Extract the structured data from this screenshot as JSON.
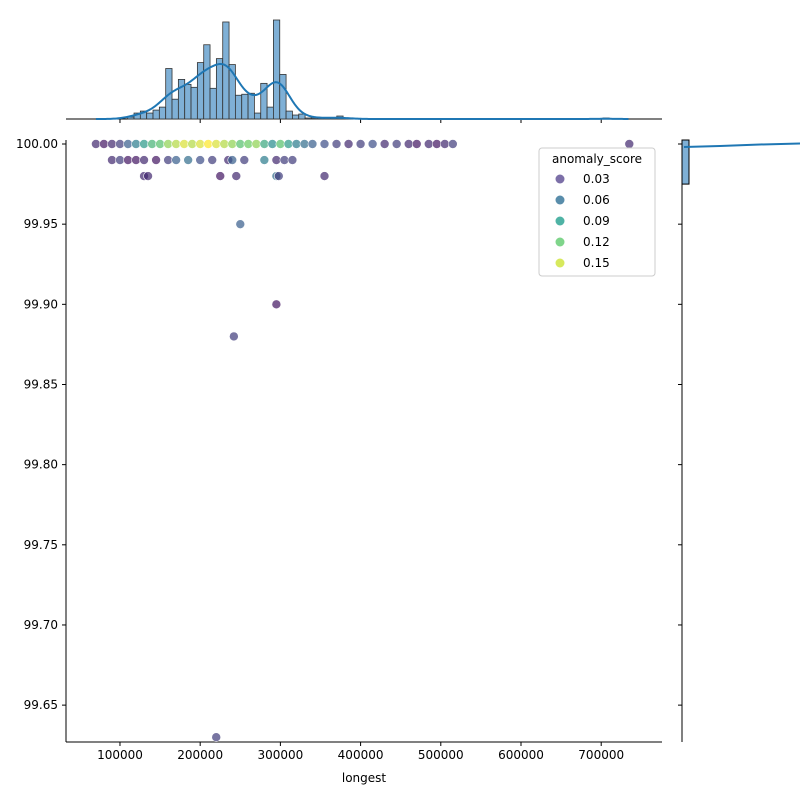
{
  "chart_data": {
    "type": "scatter",
    "xlabel": "longest",
    "ylabel": "",
    "xlim": [
      32700,
      775800
    ],
    "ylim": [
      99.627,
      100.0025
    ],
    "xticks": [
      100000,
      200000,
      300000,
      400000,
      500000,
      600000,
      700000
    ],
    "xtick_labels": [
      "100000",
      "200000",
      "300000",
      "400000",
      "500000",
      "600000",
      "700000"
    ],
    "yticks": [
      99.65,
      99.7,
      99.75,
      99.8,
      99.85,
      99.9,
      99.95,
      100.0
    ],
    "ytick_labels": [
      "99.65",
      "99.70",
      "99.75",
      "99.80",
      "99.85",
      "99.90",
      "99.95",
      "100.00"
    ],
    "hue": "anomaly_score",
    "legend": {
      "title": "anomaly_score",
      "placement": "upper-right",
      "entries": [
        {
          "label": "0.03",
          "color": "#5b4b92"
        },
        {
          "label": "0.06",
          "color": "#2f7096"
        },
        {
          "label": "0.09",
          "color": "#23a08e"
        },
        {
          "label": "0.12",
          "color": "#5fcb6e"
        },
        {
          "label": "0.15",
          "color": "#cde335"
        }
      ]
    },
    "points": [
      [
        70000,
        100,
        0.02
      ],
      [
        80000,
        100,
        0.01
      ],
      [
        90000,
        100,
        0.02
      ],
      [
        100000,
        100,
        0.03
      ],
      [
        110000,
        100,
        0.05
      ],
      [
        120000,
        100,
        0.07
      ],
      [
        130000,
        100,
        0.09
      ],
      [
        140000,
        100,
        0.11
      ],
      [
        150000,
        100,
        0.12
      ],
      [
        160000,
        100,
        0.14
      ],
      [
        170000,
        100,
        0.15
      ],
      [
        180000,
        100,
        0.16
      ],
      [
        190000,
        100,
        0.15
      ],
      [
        200000,
        100,
        0.16
      ],
      [
        210000,
        100,
        0.17
      ],
      [
        220000,
        100,
        0.16
      ],
      [
        230000,
        100,
        0.15
      ],
      [
        240000,
        100,
        0.14
      ],
      [
        250000,
        100,
        0.12
      ],
      [
        260000,
        100,
        0.13
      ],
      [
        270000,
        100,
        0.14
      ],
      [
        280000,
        100,
        0.1
      ],
      [
        290000,
        100,
        0.08
      ],
      [
        300000,
        100,
        0.12
      ],
      [
        310000,
        100,
        0.09
      ],
      [
        320000,
        100,
        0.07
      ],
      [
        330000,
        100,
        0.06
      ],
      [
        340000,
        100,
        0.05
      ],
      [
        355000,
        100,
        0.04
      ],
      [
        370000,
        100,
        0.03
      ],
      [
        385000,
        100,
        0.02
      ],
      [
        400000,
        100,
        0.03
      ],
      [
        415000,
        100,
        0.04
      ],
      [
        430000,
        100,
        0.02
      ],
      [
        445000,
        100,
        0.03
      ],
      [
        460000,
        100,
        0.02
      ],
      [
        470000,
        100,
        0.01
      ],
      [
        485000,
        100,
        0.02
      ],
      [
        495000,
        100,
        0.01
      ],
      [
        505000,
        100,
        0.02
      ],
      [
        515000,
        100,
        0.03
      ],
      [
        735000,
        100,
        0.02
      ],
      [
        90000,
        99.99,
        0.02
      ],
      [
        100000,
        99.99,
        0.03
      ],
      [
        110000,
        99.99,
        0.01
      ],
      [
        120000,
        99.99,
        0.01
      ],
      [
        130000,
        99.99,
        0.02
      ],
      [
        145000,
        99.99,
        0.01
      ],
      [
        160000,
        99.99,
        0.03
      ],
      [
        170000,
        99.99,
        0.05
      ],
      [
        185000,
        99.99,
        0.06
      ],
      [
        200000,
        99.99,
        0.04
      ],
      [
        215000,
        99.99,
        0.03
      ],
      [
        235000,
        99.99,
        0.02
      ],
      [
        240000,
        99.99,
        0.05
      ],
      [
        255000,
        99.99,
        0.03
      ],
      [
        280000,
        99.99,
        0.07
      ],
      [
        295000,
        99.99,
        0.02
      ],
      [
        305000,
        99.99,
        0.03
      ],
      [
        315000,
        99.99,
        0.03
      ],
      [
        130000,
        99.98,
        0.02
      ],
      [
        135000,
        99.98,
        0.02
      ],
      [
        225000,
        99.98,
        0.01
      ],
      [
        245000,
        99.98,
        0.02
      ],
      [
        295000,
        99.98,
        0.06
      ],
      [
        298000,
        99.98,
        0.03
      ],
      [
        355000,
        99.98,
        0.02
      ],
      [
        250000,
        99.95,
        0.05
      ],
      [
        295000,
        99.9,
        0.01
      ],
      [
        242000,
        99.88,
        0.03
      ],
      [
        220000,
        99.63,
        0.03
      ]
    ],
    "marginal_x": {
      "type": "histogram+kde",
      "bin_start": 109600,
      "bin_width": 7900,
      "counts": [
        2,
        6,
        8,
        6,
        9,
        12,
        51,
        20,
        40,
        35,
        32,
        57,
        75,
        31,
        61,
        98,
        55,
        24,
        25,
        26,
        6,
        36,
        12,
        100,
        45,
        8,
        4,
        5,
        1,
        1,
        1,
        1,
        1,
        3,
        1,
        0,
        0,
        0,
        0,
        0,
        0,
        0,
        0,
        0,
        0,
        0,
        0,
        0,
        0,
        0,
        0,
        0,
        0,
        0,
        0,
        0,
        0,
        0,
        0,
        0,
        0,
        0,
        0,
        0,
        0,
        0,
        0,
        0,
        0,
        0,
        0,
        0,
        0,
        0,
        0,
        1
      ]
    },
    "marginal_y": {
      "type": "histogram+kde",
      "bin_range": [
        99.975,
        100.0025
      ]
    }
  }
}
